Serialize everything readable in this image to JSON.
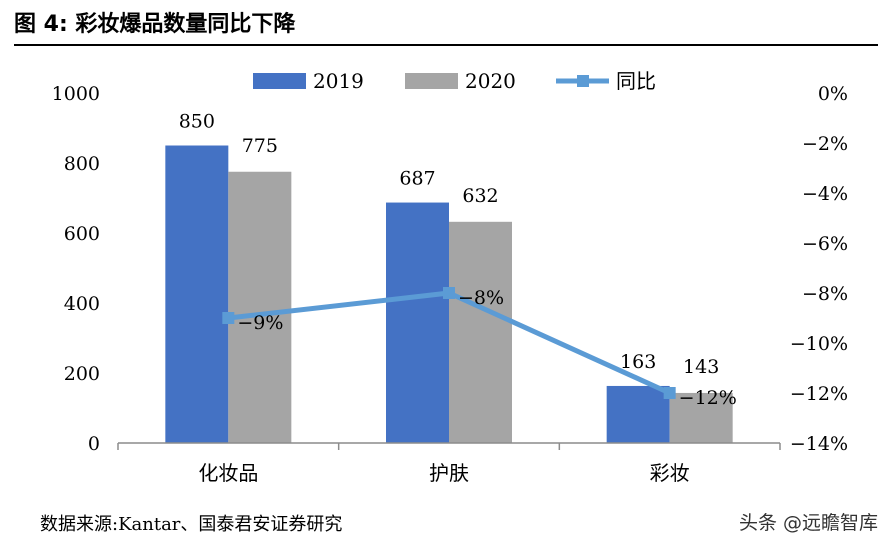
{
  "header": {
    "title": "图 4:  彩妆爆品数量同比下降"
  },
  "footer": {
    "source": "数据来源:Kantar、国泰君安证券研究",
    "watermark": "头条 @远瞻智库"
  },
  "chart_data": {
    "type": "bar",
    "categories": [
      "化妆品",
      "护肤",
      "彩妆"
    ],
    "series": [
      {
        "name": "2019",
        "values": [
          850,
          687,
          163
        ],
        "color": "#4472C4",
        "kind": "bar"
      },
      {
        "name": "2020",
        "values": [
          775,
          632,
          143
        ],
        "color": "#A5A5A5",
        "kind": "bar"
      },
      {
        "name": "同比",
        "values": [
          -9,
          -8,
          -12
        ],
        "color": "#5B9BD5",
        "kind": "line",
        "axis": "right"
      }
    ],
    "bar_labels": [
      [
        "850",
        "687",
        "163"
      ],
      [
        "775",
        "632",
        "143"
      ]
    ],
    "line_labels": [
      "−9%",
      "−8%",
      "−12%"
    ],
    "y_left": {
      "min": 0,
      "max": 1000,
      "ticks": [
        "0",
        "200",
        "400",
        "600",
        "800",
        "1000"
      ]
    },
    "y_right": {
      "min": -14,
      "max": 0,
      "ticks": [
        "−14%",
        "−12%",
        "−10%",
        "−8%",
        "−6%",
        "−4%",
        "−2%",
        "0%"
      ]
    },
    "legend": [
      "2019",
      "2020",
      "同比"
    ],
    "legend_position": "top",
    "grid": false
  }
}
